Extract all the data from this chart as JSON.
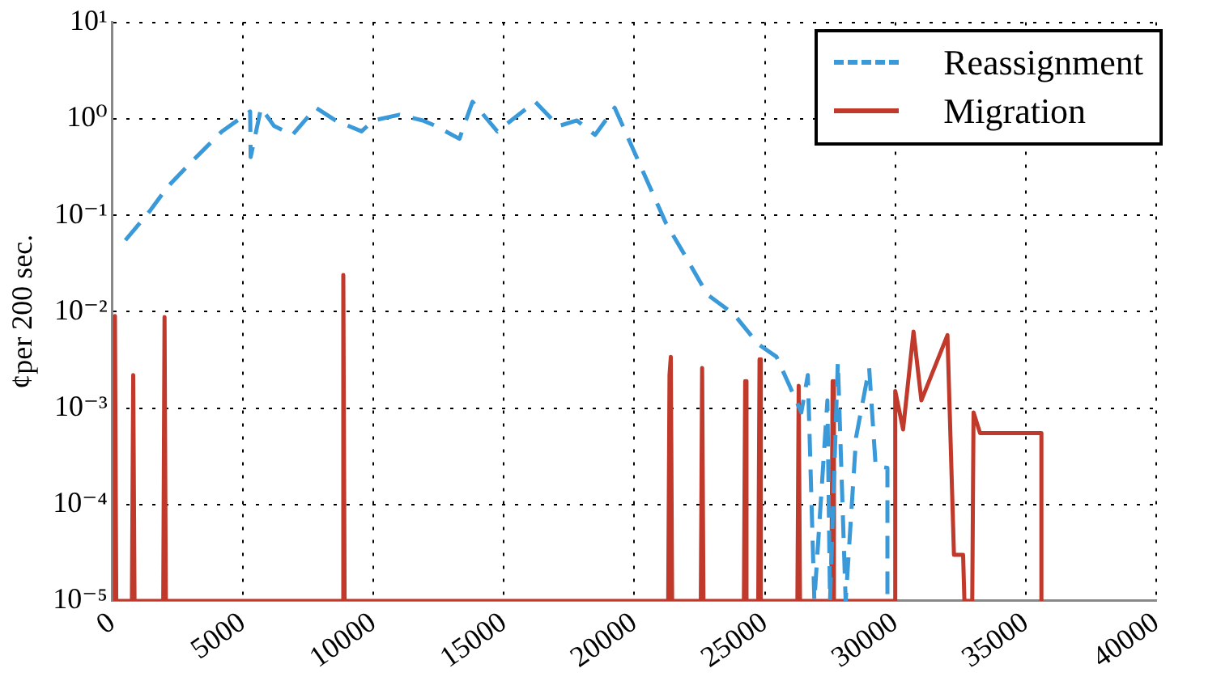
{
  "chart_data": {
    "type": "line",
    "ylabel": "¢per 200 sec.",
    "log": "y",
    "grid": true,
    "legend": "top right",
    "marker": "none",
    "xlim": [
      0,
      40000
    ],
    "xticks": [
      0,
      5000,
      10000,
      15000,
      20000,
      25000,
      30000,
      35000,
      40000
    ],
    "ylim": [
      1e-05,
      10
    ],
    "yticks": [
      {
        "value": 1e-05,
        "label": "10⁻⁵"
      },
      {
        "value": 0.0001,
        "label": "10⁻⁴"
      },
      {
        "value": 0.001,
        "label": "10⁻³"
      },
      {
        "value": 0.01,
        "label": "10⁻²"
      },
      {
        "value": 0.1,
        "label": "10⁻¹"
      },
      {
        "value": 1,
        "label": "10⁰"
      },
      {
        "value": 10,
        "label": "10¹"
      }
    ],
    "series": [
      {
        "name": "Reassignment",
        "color": "#3a9ad9",
        "line_style": "dashed",
        "x": [
          500,
          1430,
          2140,
          3000,
          4200,
          5280,
          5300,
          5700,
          6200,
          6900,
          7800,
          8550,
          9550,
          10000,
          11000,
          11900,
          12400,
          13300,
          13800,
          14750,
          16200,
          17100,
          17800,
          18500,
          19250,
          21200,
          21900,
          22800,
          23800,
          24750,
          25450,
          25950,
          26400,
          26650,
          26900,
          27400,
          27500,
          27800,
          28100,
          28500,
          29000,
          29250,
          29700,
          29700
        ],
        "values": [
          0.055,
          0.11,
          0.2,
          0.35,
          0.74,
          1.19,
          0.4,
          1.3,
          0.84,
          0.68,
          1.3,
          0.96,
          0.74,
          0.96,
          1.1,
          0.96,
          0.84,
          0.62,
          1.5,
          0.74,
          1.5,
          0.84,
          0.96,
          0.68,
          1.3,
          0.084,
          0.04,
          0.015,
          0.0095,
          0.0046,
          0.0034,
          0.0017,
          0.0009,
          0.0022,
          1e-05,
          0.0012,
          1e-05,
          0.003,
          1e-05,
          0.0005,
          0.0026,
          0.00025,
          0.00024,
          1e-05
        ]
      },
      {
        "name": "Migration",
        "color": "#c0392b",
        "line_style": "solid",
        "x": [
          50,
          100,
          150,
          750,
          800,
          850,
          1950,
          2000,
          2050,
          8800,
          8850,
          8900,
          21300,
          21350,
          21400,
          21450,
          22550,
          22600,
          22650,
          24200,
          24250,
          24300,
          24750,
          24800,
          24850,
          26250,
          26300,
          26350,
          27550,
          27600,
          27650,
          29950,
          30000,
          30300,
          30700,
          31000,
          32000,
          32250,
          32600,
          32650,
          32950,
          33000,
          33250,
          35600,
          35600
        ],
        "values": [
          1e-05,
          0.009,
          1e-05,
          1e-05,
          0.0022,
          1e-05,
          1e-05,
          0.0088,
          1e-05,
          1e-05,
          0.024,
          1e-05,
          1e-05,
          0.0022,
          0.0034,
          1e-05,
          1e-05,
          0.0026,
          1e-05,
          1e-05,
          0.0019,
          1e-05,
          1e-05,
          0.0032,
          1e-05,
          1e-05,
          0.0017,
          1e-05,
          1e-05,
          0.0019,
          1e-05,
          1e-05,
          0.0015,
          0.0006,
          0.0062,
          0.0012,
          0.0057,
          3e-05,
          3e-05,
          1e-05,
          1e-05,
          0.0009,
          0.00055,
          0.00055,
          1e-05
        ]
      }
    ]
  }
}
